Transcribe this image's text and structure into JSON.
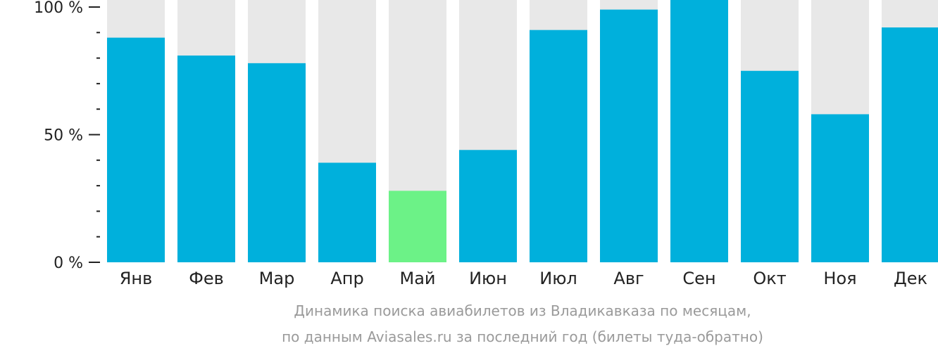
{
  "colors": {
    "bar": "#00b0dc",
    "bar_highlight": "#6cf287",
    "background_column": "#e8e8e8",
    "axis": "#222222",
    "caption": "#9a9a9a"
  },
  "chart_data": {
    "type": "bar",
    "stacked_background": true,
    "categories": [
      "Янв",
      "Фев",
      "Мар",
      "Апр",
      "Май",
      "Июн",
      "Июл",
      "Авг",
      "Сен",
      "Окт",
      "Ноя",
      "Дек"
    ],
    "values": [
      88,
      81,
      78,
      39,
      28,
      44,
      91,
      99,
      103,
      75,
      58,
      92
    ],
    "highlight_category": "Май",
    "ylim": [
      0,
      100
    ],
    "yticks": [
      {
        "value": 0,
        "label": "0 %"
      },
      {
        "value": 50,
        "label": "50 %"
      },
      {
        "value": 100,
        "label": "100 %"
      }
    ],
    "minor_tick_step": 10,
    "grid": false,
    "xlabel": "",
    "ylabel": ""
  },
  "caption": {
    "line1": "Динамика поиска авиабилетов из Владикавказа по месяцам,",
    "line2": "по данным Aviasales.ru за последний год (билеты туда-обратно)"
  }
}
